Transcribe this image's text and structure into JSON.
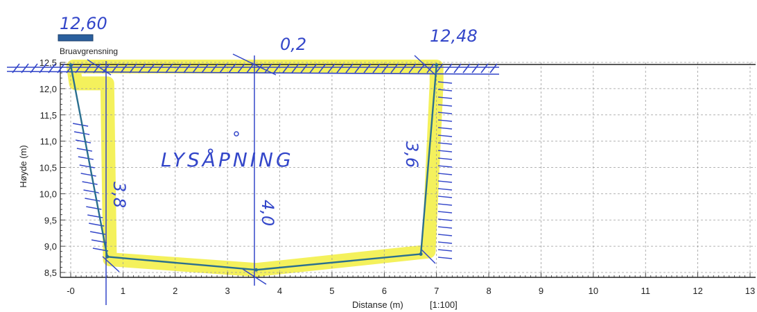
{
  "chart_data": {
    "type": "line",
    "xlabel": "Distanse (m)",
    "scale_label": "[1:100]",
    "ylabel": "Høyde (m)",
    "xlim": [
      -0.15,
      13.1
    ],
    "ylim": [
      8.4,
      12.5
    ],
    "x_ticks": [
      "-0",
      "1",
      "2",
      "3",
      "4",
      "5",
      "6",
      "7",
      "8",
      "9",
      "10",
      "11",
      "12",
      "13"
    ],
    "y_ticks": [
      "12,5",
      "12,0",
      "11,5",
      "11,0",
      "10,5",
      "10,0",
      "9,5",
      "9,0",
      "8,5"
    ],
    "legend": [
      {
        "name": "Bruavgrensning",
        "color": "#2a5f9e"
      }
    ],
    "grid": true,
    "series": [
      {
        "name": "Bruavgrensning",
        "color": "#2a6f8f",
        "points": [
          [
            0.0,
            12.45
          ],
          [
            0.7,
            8.8
          ],
          [
            3.55,
            8.55
          ],
          [
            6.7,
            8.85
          ],
          [
            7.0,
            12.45
          ]
        ]
      }
    ]
  },
  "annotations": {
    "top_left_level": "12,60",
    "top_right_level": "12,48",
    "mid_thickness": "0,2",
    "left_height": "3,8",
    "center_height": "4,0",
    "right_height": "3,6",
    "opening_label": "LYSÅPNING"
  },
  "colors": {
    "ink": "#3346c9",
    "highlight": "#f2ef3f",
    "structure": "#2a6f8f"
  }
}
